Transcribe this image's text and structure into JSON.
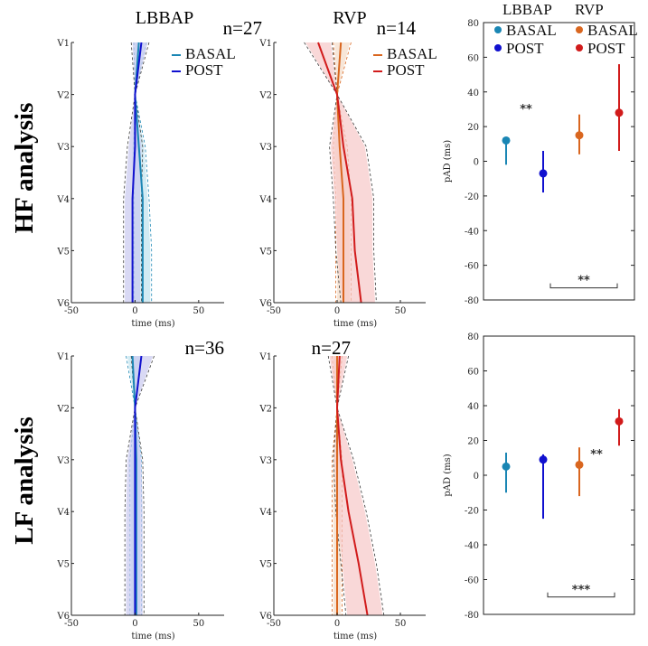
{
  "labels": {
    "hf_row": "HF analysis",
    "lf_row": "LF analysis"
  },
  "colors": {
    "lbbap_basal": "#1a86b4",
    "lbbap_post": "#1010cf",
    "rvp_basal": "#d9661f",
    "rvp_post": "#d11b1b",
    "lbbap_band": "#c9c9ef",
    "rvp_band": "#f6c7c7",
    "dash": "#3a3a3a"
  },
  "chart_data": [
    {
      "id": "hf_lbbap",
      "type": "line",
      "title": "LBBAP",
      "n_label": "n=27",
      "xlabel": "time (ms)",
      "xlim": [
        -50,
        70
      ],
      "x_ticks": [
        -50,
        0,
        50
      ],
      "leads": [
        "V1",
        "V2",
        "V3",
        "V4",
        "V5",
        "V6"
      ],
      "legend": [
        "BASAL",
        "POST"
      ],
      "series": [
        {
          "name": "BASAL",
          "x": [
            3,
            0,
            3,
            6,
            6,
            6
          ],
          "band_lo": [
            0,
            0,
            -2,
            -2,
            -2,
            -2
          ],
          "band_hi": [
            8,
            0,
            7,
            10,
            12,
            12
          ],
          "dash_lo": [
            -1,
            0,
            -1,
            -1,
            -1,
            -1
          ],
          "dash_hi": [
            9,
            0,
            8,
            11,
            13,
            13
          ]
        },
        {
          "name": "POST",
          "x": [
            5,
            0,
            0,
            -2,
            -2,
            -2
          ],
          "band_lo": [
            -2,
            0,
            -5,
            -8,
            -8,
            -8
          ],
          "band_hi": [
            10,
            0,
            5,
            4,
            4,
            4
          ],
          "dash_lo": [
            -3,
            0,
            -6,
            -9,
            -9,
            -9
          ],
          "dash_hi": [
            11,
            0,
            6,
            5,
            5,
            5
          ]
        }
      ]
    },
    {
      "id": "hf_rvp",
      "type": "line",
      "title": "RVP",
      "n_label": "n=14",
      "xlabel": "time (ms)",
      "xlim": [
        -50,
        70
      ],
      "x_ticks": [
        -50,
        0,
        50
      ],
      "leads": [
        "V1",
        "V2",
        "V3",
        "V4",
        "V5",
        "V6"
      ],
      "legend": [
        "BASAL",
        "POST"
      ],
      "series": [
        {
          "name": "BASAL",
          "x": [
            3,
            0,
            2,
            5,
            5,
            5
          ],
          "band_lo": [
            -2,
            0,
            -2,
            0,
            0,
            0
          ],
          "band_hi": [
            10,
            0,
            7,
            10,
            10,
            10
          ],
          "dash_lo": [
            -3,
            0,
            -3,
            -1,
            -1,
            -1
          ],
          "dash_hi": [
            11,
            0,
            8,
            11,
            11,
            11
          ]
        },
        {
          "name": "POST",
          "x": [
            -15,
            0,
            5,
            12,
            14,
            19
          ],
          "band_lo": [
            -25,
            0,
            -5,
            -2,
            0,
            4
          ],
          "band_hi": [
            -5,
            0,
            22,
            28,
            28,
            30
          ],
          "dash_lo": [
            -26,
            0,
            -6,
            -3,
            -1,
            3
          ],
          "dash_hi": [
            -4,
            0,
            23,
            29,
            29,
            31
          ]
        }
      ]
    },
    {
      "id": "hf_pad",
      "type": "scatter",
      "ylabel": "pAD (ms)",
      "ylim": [
        -80,
        80
      ],
      "y_ticks": [
        -80,
        -60,
        -40,
        -20,
        0,
        20,
        40,
        60,
        80
      ],
      "legend_groups": [
        {
          "title": "LBBAP",
          "entries": [
            "BASAL",
            "POST"
          ]
        },
        {
          "title": "RVP",
          "entries": [
            "BASAL",
            "POST"
          ]
        }
      ],
      "points": [
        {
          "group": "LBBAP",
          "name": "BASAL",
          "y": 12,
          "lo": -2,
          "hi": 14
        },
        {
          "group": "LBBAP",
          "name": "POST",
          "y": -7,
          "lo": -18,
          "hi": 6
        },
        {
          "group": "RVP",
          "name": "BASAL",
          "y": 15,
          "lo": 4,
          "hi": 27
        },
        {
          "group": "RVP",
          "name": "POST",
          "y": 28,
          "lo": 6,
          "hi": 56
        }
      ],
      "annotations": [
        "**",
        "**"
      ]
    },
    {
      "id": "lf_lbbap",
      "type": "line",
      "title": "",
      "n_label": "n=36",
      "xlabel": "time (ms)",
      "xlim": [
        -50,
        70
      ],
      "x_ticks": [
        -50,
        0,
        50
      ],
      "leads": [
        "V1",
        "V2",
        "V3",
        "V4",
        "V5",
        "V6"
      ],
      "series": [
        {
          "name": "BASAL",
          "x": [
            -2,
            0,
            1,
            1,
            1,
            1
          ],
          "band_lo": [
            -6,
            0,
            -3,
            -3,
            -3,
            -3
          ],
          "band_hi": [
            4,
            0,
            4,
            4,
            4,
            4
          ],
          "dash_lo": [
            -7,
            0,
            -4,
            -4,
            -4,
            -4
          ],
          "dash_hi": [
            5,
            0,
            5,
            5,
            5,
            5
          ]
        },
        {
          "name": "POST",
          "x": [
            5,
            0,
            0,
            0,
            0,
            0
          ],
          "band_lo": [
            -2,
            0,
            -6,
            -7,
            -7,
            -7
          ],
          "band_hi": [
            14,
            0,
            5,
            6,
            6,
            6
          ],
          "dash_lo": [
            -3,
            0,
            -7,
            -8,
            -8,
            -8
          ],
          "dash_hi": [
            15,
            0,
            6,
            7,
            7,
            7
          ]
        }
      ]
    },
    {
      "id": "lf_rvp",
      "type": "line",
      "title": "",
      "n_label": "n=27",
      "xlabel": "time (ms)",
      "xlim": [
        -50,
        70
      ],
      "x_ticks": [
        -50,
        0,
        50
      ],
      "leads": [
        "V1",
        "V2",
        "V3",
        "V4",
        "V5",
        "V6"
      ],
      "series": [
        {
          "name": "BASAL",
          "x": [
            0,
            0,
            0,
            0,
            0,
            0
          ],
          "band_lo": [
            -3,
            0,
            -3,
            -3,
            -3,
            -3
          ],
          "band_hi": [
            3,
            0,
            3,
            3,
            3,
            3
          ],
          "dash_lo": [
            -4,
            0,
            -4,
            -4,
            -4,
            -4
          ],
          "dash_hi": [
            4,
            0,
            4,
            4,
            4,
            4
          ]
        },
        {
          "name": "POST",
          "x": [
            2,
            0,
            3,
            9,
            17,
            24
          ],
          "band_lo": [
            -6,
            0,
            -2,
            0,
            4,
            8
          ],
          "band_hi": [
            8,
            0,
            12,
            22,
            30,
            36
          ],
          "dash_lo": [
            -7,
            0,
            -3,
            -1,
            3,
            7
          ],
          "dash_hi": [
            9,
            0,
            13,
            23,
            31,
            37
          ]
        }
      ]
    },
    {
      "id": "lf_pad",
      "type": "scatter",
      "ylabel": "pAD (ms)",
      "ylim": [
        -80,
        80
      ],
      "y_ticks": [
        -80,
        -60,
        -40,
        -20,
        0,
        20,
        40,
        60,
        80
      ],
      "points": [
        {
          "group": "LBBAP",
          "name": "BASAL",
          "y": 5,
          "lo": -10,
          "hi": 13
        },
        {
          "group": "LBBAP",
          "name": "POST",
          "y": 9,
          "lo": -25,
          "hi": 12
        },
        {
          "group": "RVP",
          "name": "BASAL",
          "y": 6,
          "lo": -12,
          "hi": 16
        },
        {
          "group": "RVP",
          "name": "POST",
          "y": 31,
          "lo": 17,
          "hi": 38
        }
      ],
      "annotations": [
        "**",
        "***"
      ]
    }
  ]
}
